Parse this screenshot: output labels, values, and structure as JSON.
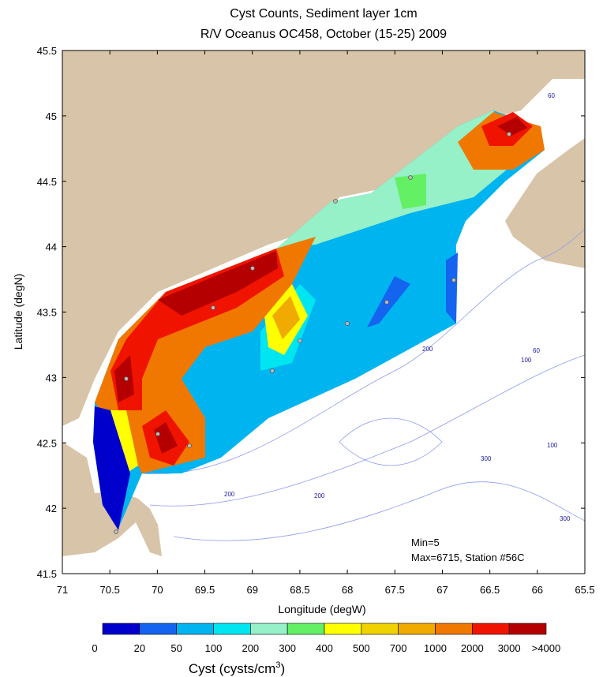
{
  "title": "Cyst Counts, Sediment layer 1cm",
  "subtitle": "R/V Oceanus OC458, October (15-25) 2009",
  "x_axis": {
    "label": "Longitude (degW)",
    "lim": [
      71,
      65.5
    ],
    "ticks": [
      71,
      70.5,
      70,
      69.5,
      69,
      68.5,
      68,
      67.5,
      67,
      66.5,
      66,
      65.5
    ]
  },
  "y_axis": {
    "label": "Latitude (degN)",
    "lim": [
      41.5,
      45.5
    ],
    "ticks": [
      41.5,
      42,
      42.5,
      43,
      43.5,
      44,
      44.5,
      45,
      45.5
    ]
  },
  "annotations": [
    "Min=5",
    "Max=6715, Station #56C"
  ],
  "depth_labels": [
    "60",
    "200",
    "60",
    "100",
    "100",
    "300",
    "200",
    "200",
    "300"
  ],
  "colorbar": {
    "label": [
      "Cyst (cysts/cm",
      "3",
      ")"
    ],
    "levels": [
      0,
      20,
      50,
      100,
      200,
      300,
      400,
      500,
      700,
      1000,
      2000,
      3000,
      {
        "value": 4000,
        "label": ">4000"
      }
    ],
    "colors": [
      "#0000cd",
      "#1464f0",
      "#00b4f0",
      "#00e6f0",
      "#96f0c8",
      "#64f064",
      "#ffff00",
      "#f0d200",
      "#f0aa00",
      "#f07800",
      "#f01400",
      "#b40000"
    ]
  }
}
